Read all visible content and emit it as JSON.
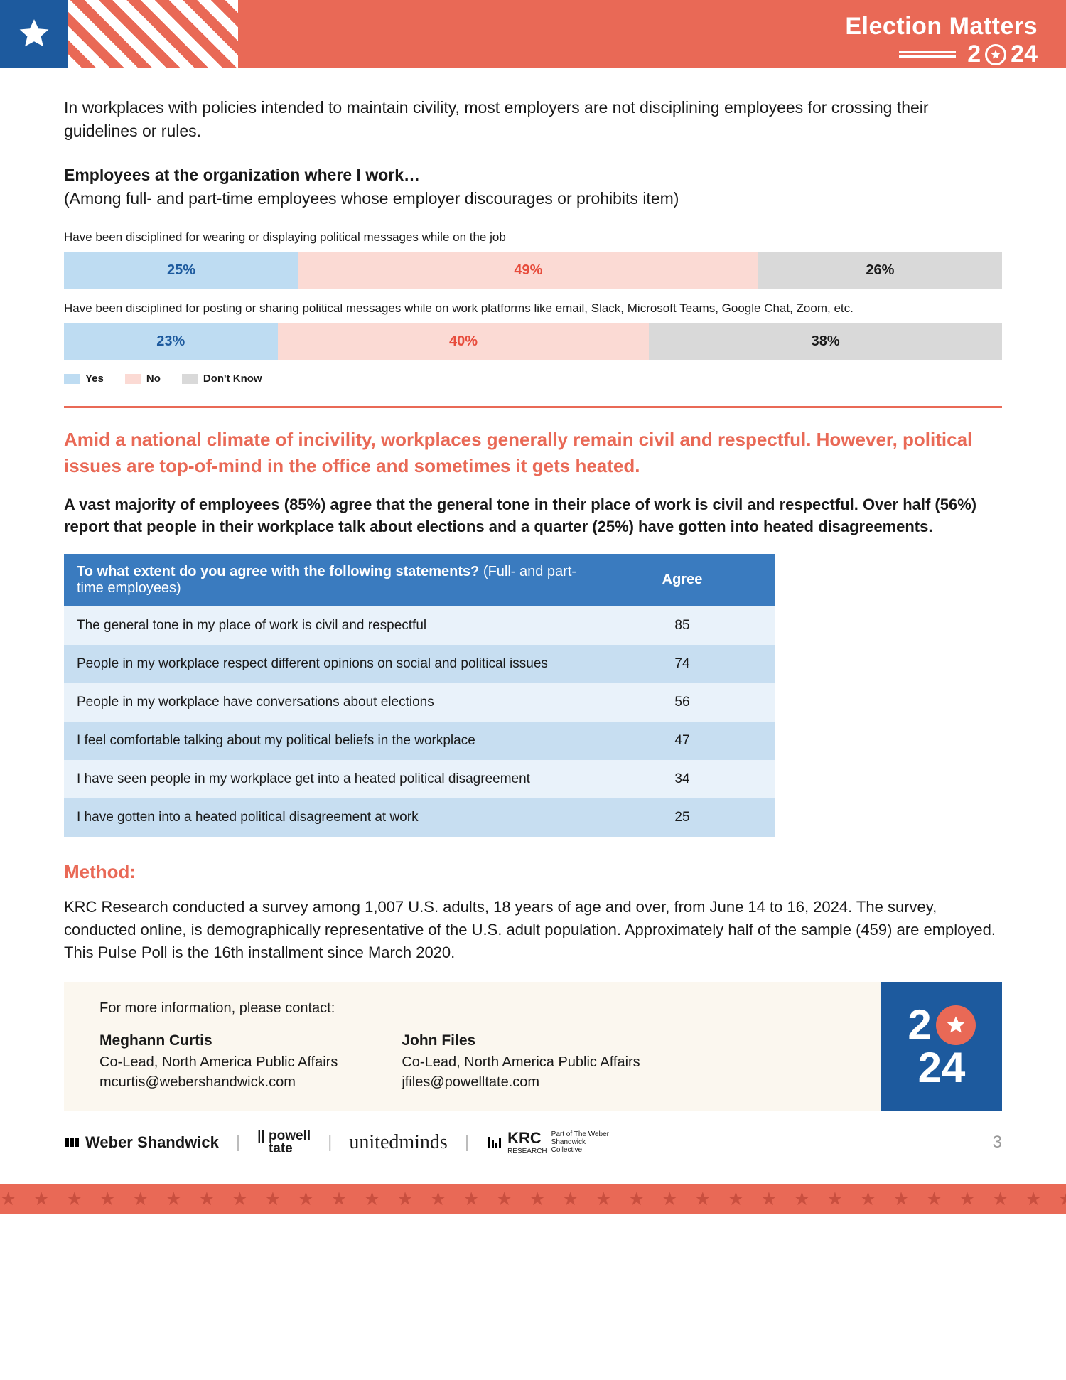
{
  "header": {
    "title": "Election Matters",
    "year_a": "2",
    "year_b": "24"
  },
  "intro": "In workplaces with policies intended to maintain civility, most employers are not disciplining employees for crossing their guidelines or rules.",
  "subhead_bold": "Employees at the organization where I work…",
  "subhead_paren": "(Among full- and part-time employees whose employer discourages or prohibits item)",
  "bars": [
    {
      "label": "Have been disciplined for wearing or displaying political messages while on the job",
      "yes": 25,
      "no": 49,
      "dk": 26
    },
    {
      "label": "Have been disciplined for posting or sharing political messages while on work platforms like email, Slack, Microsoft Teams, Google Chat, Zoom, etc.",
      "yes": 23,
      "no": 40,
      "dk": 38
    }
  ],
  "legend": {
    "yes": "Yes",
    "no": "No",
    "dk": "Don't Know"
  },
  "colors": {
    "yes_bg": "#bedcf2",
    "no_bg": "#fbdad4",
    "dk_bg": "#d9d9d9",
    "yes_txt": "#1d5a9e",
    "no_txt": "#e74c3c",
    "accent": "#e96956",
    "table_head": "#3a7bbf",
    "row_light": "#e9f2fa",
    "row_dark": "#c7def1",
    "badge_bg": "#1d5a9e"
  },
  "section_heading": "Amid a national climate of incivility, workplaces generally remain civil and respectful. However, political issues are top-of-mind in the office and sometimes it gets heated.",
  "para": "A vast majority of employees (85%) agree that the general tone in their place of work is civil and respectful. Over half (56%) report that people in their workplace talk about elections and a quarter (25%) have gotten into heated disagreements.",
  "table": {
    "q": "To what extent do you agree with the following statements? ",
    "q_sub": "(Full- and part-time employees)",
    "col": "Agree",
    "rows": [
      {
        "s": "The general tone in my place of work is civil and respectful",
        "v": 85
      },
      {
        "s": "People in my workplace respect different opinions on social and political issues",
        "v": 74
      },
      {
        "s": "People in my workplace have conversations about elections",
        "v": 56
      },
      {
        "s": "I feel comfortable talking about my political beliefs in the workplace",
        "v": 47
      },
      {
        "s": "I have seen people in my workplace get into a heated political disagreement",
        "v": 34
      },
      {
        "s": "I have gotten into a heated political disagreement at work",
        "v": 25
      }
    ]
  },
  "method_h": "Method:",
  "method_p": "KRC Research conducted a survey among 1,007 U.S. adults, 18 years of age and over, from June 14 to 16, 2024. The survey, conducted online, is demographically representative of the U.S. adult population. Approximately half of the sample (459) are employed. This Pulse Poll is the 16th installment since March 2020.",
  "contact_intro": "For more information, please contact:",
  "contacts": [
    {
      "name": "Meghann Curtis",
      "role": "Co-Lead, North America Public Affairs",
      "email": "mcurtis@webershandwick.com"
    },
    {
      "name": "John Files",
      "role": "Co-Lead, North America Public Affairs",
      "email": "jfiles@powelltate.com"
    }
  ],
  "badge": {
    "r1a": "2",
    "r2": "24"
  },
  "logos": {
    "ws": "Weber Shandwick",
    "pt1": "powell",
    "pt2": "tate",
    "um": "unitedminds",
    "krc": "KRC",
    "krc_sub": "RESEARCH",
    "krc_tag": "Part of The Weber Shandwick Collective"
  },
  "page": "3"
}
